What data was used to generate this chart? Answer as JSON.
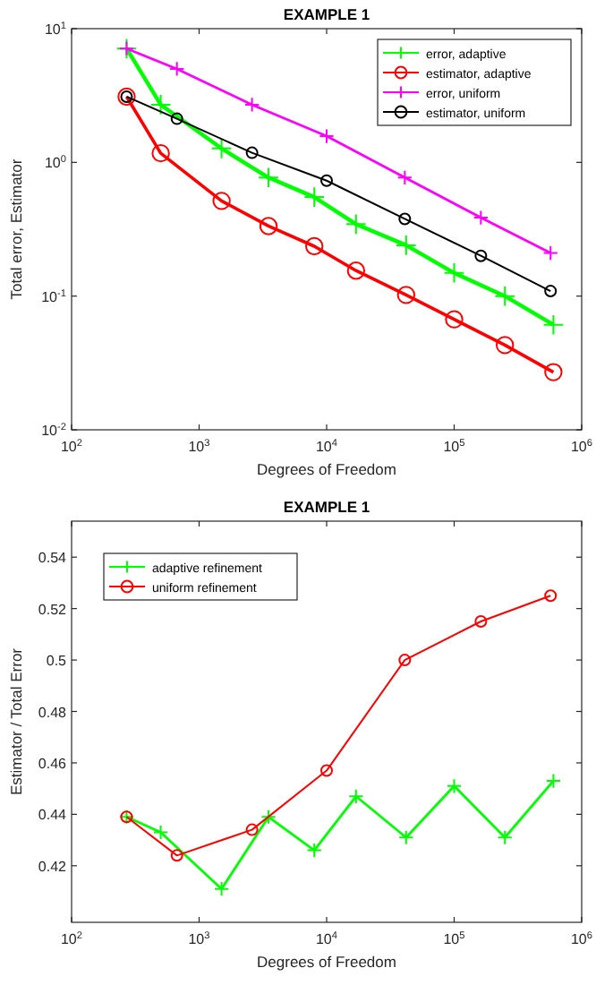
{
  "chart_data": [
    {
      "type": "line",
      "title": "EXAMPLE 1",
      "xlabel": "Degrees of Freedom",
      "ylabel": "Total error,  Estimator",
      "log": "xy",
      "legend": "top right",
      "xlim": [
        100,
        1000000
      ],
      "xticks": [
        {
          "value": 100,
          "label": "10$^{2}$"
        },
        {
          "value": 1000,
          "label": "10$^{3}$"
        },
        {
          "value": 10000,
          "label": "10$^{4}$"
        },
        {
          "value": 100000,
          "label": "10$^{5}$"
        },
        {
          "value": 1000000,
          "label": "10$^{6}$"
        }
      ],
      "ylim": [
        0.01,
        10
      ],
      "yticks": [
        {
          "value": 0.01,
          "label": "10$^{-2}$"
        },
        {
          "value": 0.1,
          "label": "10$^{-1}$"
        },
        {
          "value": 1,
          "label": "10$^{0}$"
        },
        {
          "value": 10,
          "label": "10$^{1}$"
        }
      ],
      "series": [
        {
          "name": "error, adaptive",
          "color": "#00ff00",
          "marker": "cross",
          "x": [
            270,
            500,
            1500,
            3500,
            8000,
            17000,
            42000,
            100000,
            250000,
            600000
          ],
          "values": [
            7.1,
            2.7,
            1.27,
            0.77,
            0.55,
            0.345,
            0.24,
            0.149,
            0.1,
            0.061
          ]
        },
        {
          "name": "estimator, adaptive",
          "color": "#ff0000",
          "marker": "circle",
          "x": [
            270,
            500,
            1500,
            3500,
            8000,
            17000,
            42000,
            100000,
            250000,
            600000
          ],
          "values": [
            3.1,
            1.17,
            0.515,
            0.334,
            0.236,
            0.155,
            0.102,
            0.067,
            0.043,
            0.027
          ]
        },
        {
          "name": "error, uniform",
          "color": "#ff00ff",
          "marker": "cross",
          "x": [
            270,
            670,
            2600,
            10000,
            41000,
            162000,
            570000
          ],
          "values": [
            7.1,
            5.0,
            2.7,
            1.57,
            0.77,
            0.386,
            0.21
          ]
        },
        {
          "name": "estimator, uniform",
          "color": "#000000",
          "marker": "circle",
          "x": [
            270,
            670,
            2600,
            10000,
            41000,
            162000,
            570000
          ],
          "values": [
            3.1,
            2.12,
            1.18,
            0.73,
            0.378,
            0.2,
            0.109
          ]
        }
      ]
    },
    {
      "type": "line",
      "title": "EXAMPLE 1",
      "xlabel": "Degrees of Freedom",
      "ylabel": "Estimator / Total Error",
      "log": "x",
      "legend": "top left",
      "xlim": [
        100,
        1000000
      ],
      "xticks": [
        {
          "value": 100,
          "label": "10$^{2}$"
        },
        {
          "value": 1000,
          "label": "10$^{3}$"
        },
        {
          "value": 10000,
          "label": "10$^{4}$"
        },
        {
          "value": 100000,
          "label": "10$^{5}$"
        },
        {
          "value": 1000000,
          "label": "10$^{6}$"
        }
      ],
      "ylim": [
        0.398,
        0.554
      ],
      "yticks": [
        0.42,
        0.44,
        0.46,
        0.48,
        0.5,
        0.52,
        0.54
      ],
      "series": [
        {
          "name": "adaptive refinement",
          "color": "#00ff00",
          "marker": "cross",
          "x": [
            270,
            500,
            1500,
            3500,
            8000,
            17000,
            42000,
            100000,
            250000,
            600000
          ],
          "values": [
            0.439,
            0.433,
            0.411,
            0.439,
            0.426,
            0.447,
            0.431,
            0.451,
            0.431,
            0.453
          ]
        },
        {
          "name": "uniform refinement",
          "color": "#ff0000",
          "marker": "circle",
          "x": [
            270,
            670,
            2600,
            10000,
            41000,
            162000,
            570000
          ],
          "values": [
            0.439,
            0.424,
            0.434,
            0.457,
            0.5,
            0.515,
            0.525
          ]
        }
      ]
    }
  ]
}
